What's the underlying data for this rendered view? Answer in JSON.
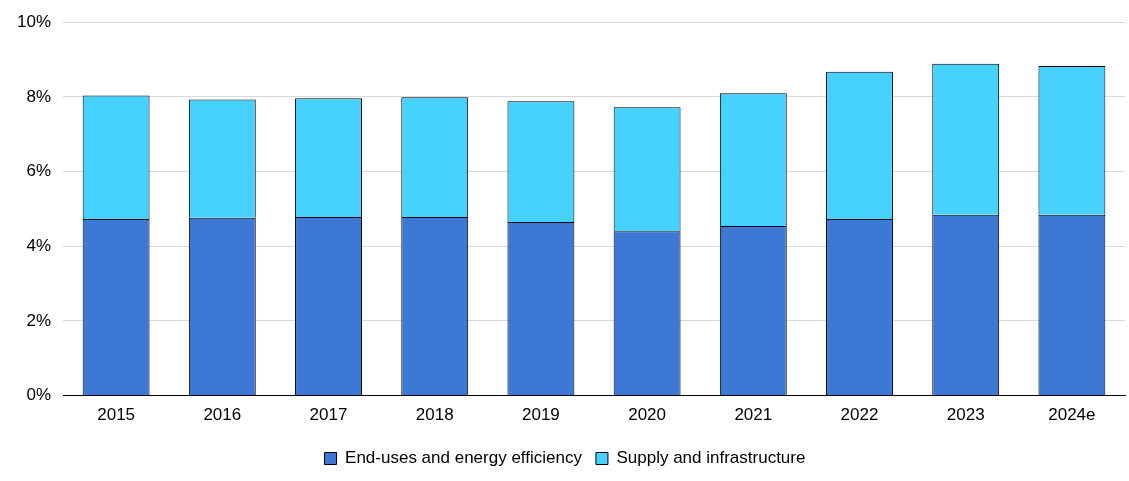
{
  "chart_data": {
    "type": "bar",
    "stacked": true,
    "categories": [
      "2015",
      "2016",
      "2017",
      "2018",
      "2019",
      "2020",
      "2021",
      "2022",
      "2023",
      "2024e"
    ],
    "series": [
      {
        "name": "End-uses and energy efficiency",
        "color": "#3c78d4",
        "values": [
          4.73,
          4.76,
          4.78,
          4.78,
          4.65,
          4.4,
          4.54,
          4.73,
          4.84,
          4.84
        ]
      },
      {
        "name": "Supply and infrastructure",
        "color": "#47d1ff",
        "values": [
          3.31,
          3.17,
          3.18,
          3.21,
          3.23,
          3.32,
          3.56,
          3.94,
          4.05,
          3.99
        ]
      }
    ],
    "ylim": [
      0,
      10
    ],
    "yticks": [
      {
        "value": 0,
        "label": "0%"
      },
      {
        "value": 2,
        "label": "2%"
      },
      {
        "value": 4,
        "label": "4%"
      },
      {
        "value": 6,
        "label": "6%"
      },
      {
        "value": 8,
        "label": "8%"
      },
      {
        "value": 10,
        "label": "10%"
      }
    ],
    "grid": "y",
    "legend": "bottom"
  }
}
